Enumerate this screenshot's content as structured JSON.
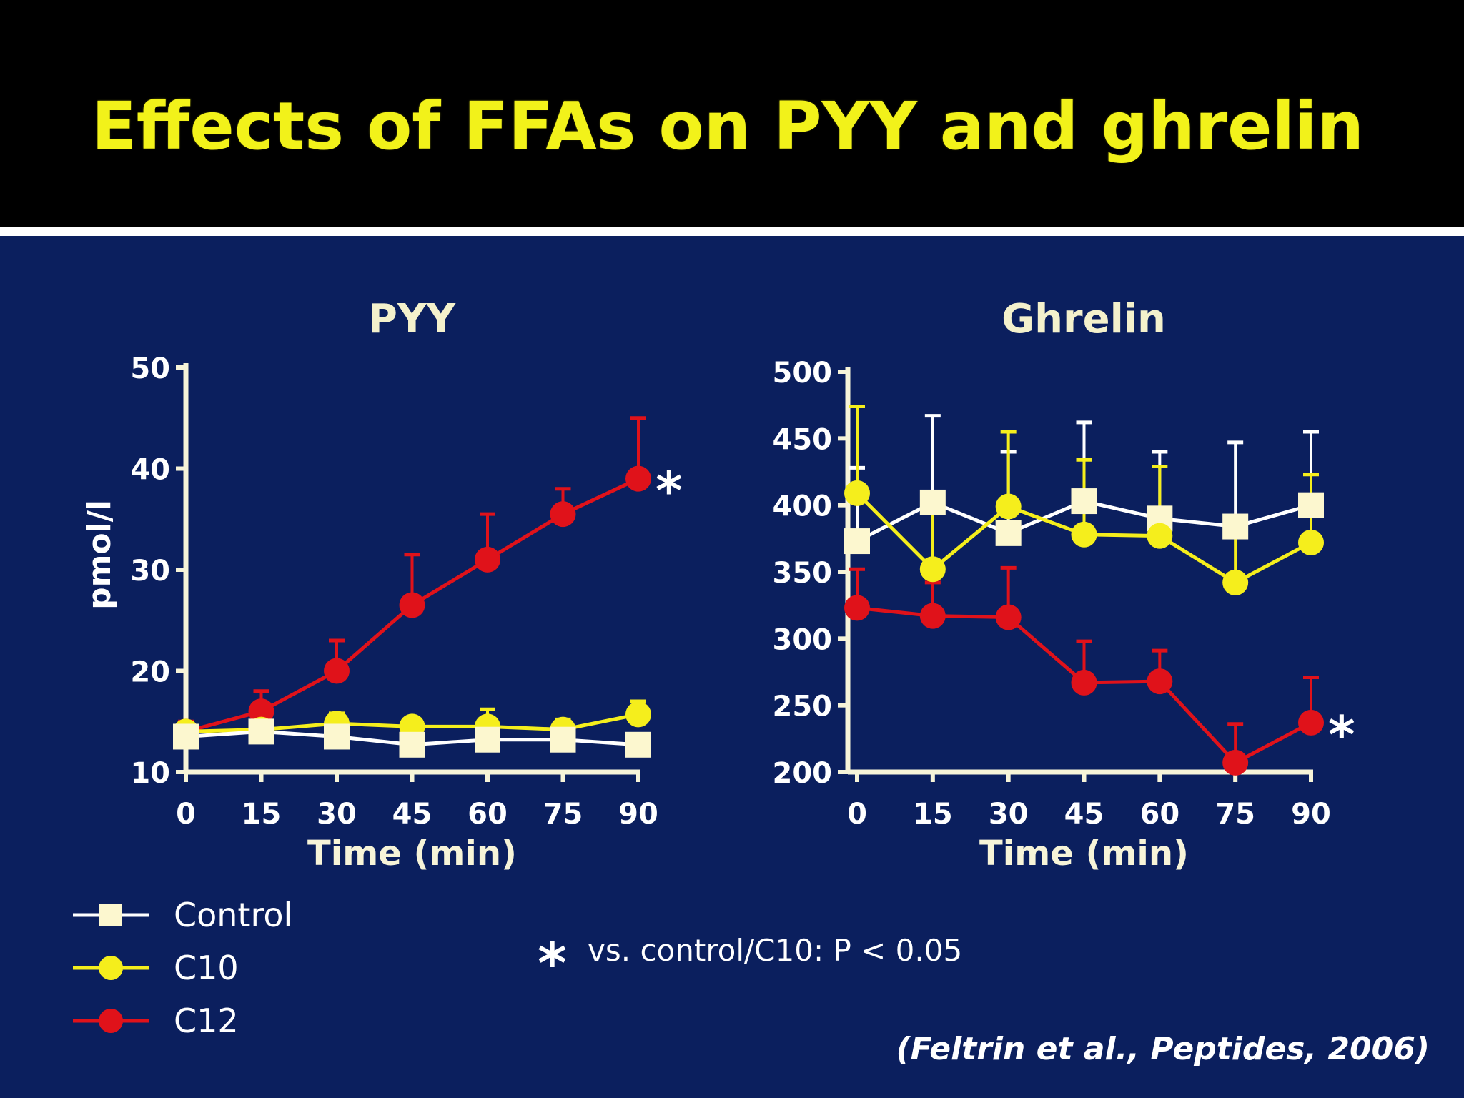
{
  "slide": {
    "title": "Effects of FFAs on PYY and ghrelin",
    "footnote_star": "*",
    "footnote": "vs. control/C10: P < 0.05",
    "citation": "(Feltrin et al., Peptides, 2006)"
  },
  "colors": {
    "background": "#0b1f5e",
    "header": "#000000",
    "title": "#f2f21a",
    "axis": "#f7f4d8",
    "control": "#ffffff",
    "control_marker": "#fcf7cf",
    "c10": "#f5ee1c",
    "c12": "#e0121a"
  },
  "legend": [
    {
      "name": "Control",
      "marker": "square",
      "color": "#ffffff"
    },
    {
      "name": "C10",
      "marker": "circle",
      "color": "#f5ee1c"
    },
    {
      "name": "C12",
      "marker": "circle",
      "color": "#e0121a"
    }
  ],
  "chart_data": [
    {
      "type": "line",
      "title": "PYY",
      "xlabel": "Time (min)",
      "ylabel": "pmol/l",
      "x": [
        0,
        15,
        30,
        45,
        60,
        75,
        90
      ],
      "xticks": [
        "0",
        "15",
        "30",
        "45",
        "60",
        "75",
        "90"
      ],
      "yticks": [
        10,
        20,
        30,
        40,
        50
      ],
      "ylim": [
        10,
        50
      ],
      "grid": false,
      "series": [
        {
          "name": "C12",
          "marker": "circle",
          "color": "#e0121a",
          "values": [
            14,
            16,
            20,
            26.5,
            31,
            35.5,
            39
          ],
          "error_upper": [
            15,
            18,
            23,
            31.5,
            35.5,
            38,
            45
          ]
        },
        {
          "name": "C10",
          "marker": "circle",
          "color": "#f5ee1c",
          "values": [
            14,
            14.2,
            14.8,
            14.5,
            14.5,
            14.2,
            15.7
          ],
          "error_upper": [
            14.5,
            15,
            15.8,
            15.2,
            16.2,
            15.2,
            17
          ]
        },
        {
          "name": "Control",
          "marker": "square",
          "color": "#ffffff",
          "values": [
            13.5,
            14,
            13.5,
            12.7,
            13.2,
            13.2,
            12.7
          ],
          "error_upper": [
            14.5,
            15,
            14.5,
            13.7,
            14.2,
            14.2,
            13.5
          ]
        }
      ],
      "annotations": [
        {
          "text": "*",
          "series": "C12",
          "x": 90
        }
      ]
    },
    {
      "type": "line",
      "title": "Ghrelin",
      "xlabel": "Time (min)",
      "ylabel": "",
      "x": [
        0,
        15,
        30,
        45,
        60,
        75,
        90
      ],
      "xticks": [
        "0",
        "15",
        "30",
        "45",
        "60",
        "75",
        "90"
      ],
      "yticks": [
        200,
        250,
        300,
        350,
        400,
        450,
        500
      ],
      "ylim": [
        200,
        500
      ],
      "grid": false,
      "series": [
        {
          "name": "Control",
          "marker": "square",
          "color": "#ffffff",
          "values": [
            373,
            402,
            379,
            403,
            390,
            384,
            400
          ],
          "error_upper": [
            428,
            467,
            440,
            462,
            440,
            447,
            455
          ]
        },
        {
          "name": "C10",
          "marker": "circle",
          "color": "#f5ee1c",
          "values": [
            409,
            352,
            399,
            378,
            377,
            342,
            372
          ],
          "error_upper": [
            474,
            400,
            455,
            434,
            429,
            383,
            423
          ]
        },
        {
          "name": "C12",
          "marker": "circle",
          "color": "#e0121a",
          "values": [
            323,
            317,
            316,
            267,
            268,
            207,
            237
          ],
          "error_upper": [
            352,
            342,
            353,
            298,
            291,
            236,
            271
          ]
        }
      ],
      "annotations": [
        {
          "text": "*",
          "series": "C12",
          "x": 90
        }
      ]
    }
  ]
}
